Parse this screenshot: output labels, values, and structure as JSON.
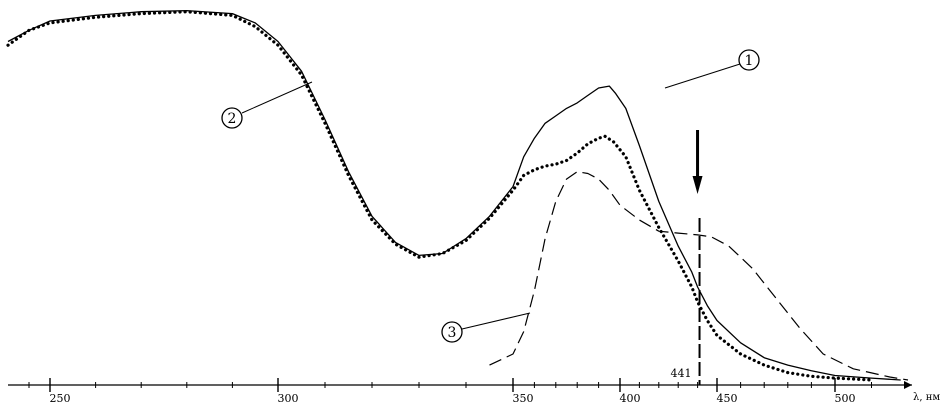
{
  "chart_data": {
    "type": "line",
    "xlabel": "λ, нм",
    "x_ticks": [
      250,
      300,
      350,
      400,
      450,
      500
    ],
    "xlim": [
      230,
      520
    ],
    "ylim": [
      0,
      1
    ],
    "grid": false,
    "legend": "none",
    "annotation": {
      "label": "441",
      "x": 441
    },
    "series": [
      {
        "marker": "1",
        "style": "solid",
        "points": [
          [
            230,
            0.91
          ],
          [
            240,
            0.94
          ],
          [
            250,
            0.965
          ],
          [
            260,
            0.98
          ],
          [
            270,
            0.99
          ],
          [
            280,
            0.993
          ],
          [
            290,
            0.985
          ],
          [
            295,
            0.96
          ],
          [
            300,
            0.91
          ],
          [
            305,
            0.83
          ],
          [
            310,
            0.7
          ],
          [
            315,
            0.56
          ],
          [
            320,
            0.44
          ],
          [
            325,
            0.37
          ],
          [
            330,
            0.335
          ],
          [
            335,
            0.34
          ],
          [
            340,
            0.38
          ],
          [
            345,
            0.44
          ],
          [
            350,
            0.52
          ],
          [
            355,
            0.6
          ],
          [
            360,
            0.65
          ],
          [
            365,
            0.69
          ],
          [
            370,
            0.71
          ],
          [
            375,
            0.73
          ],
          [
            380,
            0.745
          ],
          [
            385,
            0.765
          ],
          [
            390,
            0.785
          ],
          [
            395,
            0.79
          ],
          [
            398,
            0.77
          ],
          [
            403,
            0.73
          ],
          [
            410,
            0.63
          ],
          [
            420,
            0.48
          ],
          [
            430,
            0.36
          ],
          [
            437,
            0.29
          ],
          [
            440,
            0.25
          ],
          [
            445,
            0.2
          ],
          [
            450,
            0.16
          ],
          [
            460,
            0.1
          ],
          [
            470,
            0.06
          ],
          [
            480,
            0.04
          ],
          [
            490,
            0.025
          ],
          [
            500,
            0.012
          ],
          [
            510,
            0.005
          ],
          [
            518,
            0.0
          ]
        ]
      },
      {
        "marker": "2",
        "style": "dotted",
        "points": [
          [
            230,
            0.9
          ],
          [
            240,
            0.94
          ],
          [
            250,
            0.96
          ],
          [
            260,
            0.975
          ],
          [
            270,
            0.985
          ],
          [
            280,
            0.99
          ],
          [
            290,
            0.98
          ],
          [
            295,
            0.95
          ],
          [
            300,
            0.9
          ],
          [
            305,
            0.82
          ],
          [
            310,
            0.69
          ],
          [
            315,
            0.55
          ],
          [
            320,
            0.43
          ],
          [
            325,
            0.365
          ],
          [
            330,
            0.33
          ],
          [
            335,
            0.34
          ],
          [
            340,
            0.375
          ],
          [
            345,
            0.435
          ],
          [
            350,
            0.51
          ],
          [
            355,
            0.55
          ],
          [
            360,
            0.565
          ],
          [
            365,
            0.575
          ],
          [
            370,
            0.58
          ],
          [
            375,
            0.59
          ],
          [
            380,
            0.61
          ],
          [
            385,
            0.635
          ],
          [
            390,
            0.65
          ],
          [
            393,
            0.655
          ],
          [
            397,
            0.64
          ],
          [
            403,
            0.6
          ],
          [
            410,
            0.51
          ],
          [
            420,
            0.41
          ],
          [
            430,
            0.32
          ],
          [
            437,
            0.25
          ],
          [
            440,
            0.21
          ],
          [
            445,
            0.16
          ],
          [
            450,
            0.12
          ],
          [
            460,
            0.07
          ],
          [
            470,
            0.04
          ],
          [
            480,
            0.02
          ],
          [
            490,
            0.01
          ],
          [
            500,
            0.005
          ],
          [
            510,
            0.0
          ]
        ]
      },
      {
        "marker": "3",
        "style": "dashed",
        "points": [
          [
            345,
            0.04
          ],
          [
            350,
            0.07
          ],
          [
            355,
            0.13
          ],
          [
            360,
            0.24
          ],
          [
            365,
            0.38
          ],
          [
            370,
            0.48
          ],
          [
            375,
            0.54
          ],
          [
            380,
            0.56
          ],
          [
            385,
            0.555
          ],
          [
            390,
            0.54
          ],
          [
            395,
            0.51
          ],
          [
            400,
            0.47
          ],
          [
            410,
            0.43
          ],
          [
            420,
            0.4
          ],
          [
            430,
            0.395
          ],
          [
            440,
            0.39
          ],
          [
            447,
            0.385
          ],
          [
            455,
            0.36
          ],
          [
            465,
            0.3
          ],
          [
            475,
            0.22
          ],
          [
            485,
            0.14
          ],
          [
            495,
            0.07
          ],
          [
            505,
            0.03
          ],
          [
            515,
            0.008
          ],
          [
            520,
            0.0
          ]
        ]
      }
    ]
  }
}
